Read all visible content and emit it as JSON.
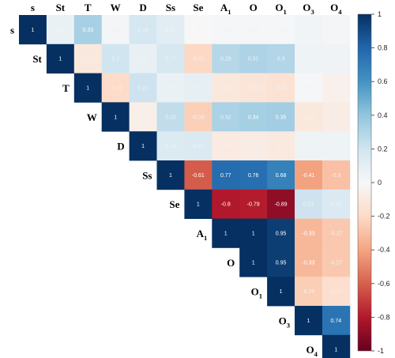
{
  "chart_data": {
    "type": "heatmap",
    "layout": "upper-triangular correlation matrix",
    "variables": [
      "s",
      "St",
      "T",
      "W",
      "D",
      "Ss",
      "Se",
      "A1",
      "O",
      "O1",
      "O3",
      "O4"
    ],
    "variable_display": [
      {
        "base": "s",
        "sub": ""
      },
      {
        "base": "St",
        "sub": ""
      },
      {
        "base": "T",
        "sub": ""
      },
      {
        "base": "W",
        "sub": ""
      },
      {
        "base": "D",
        "sub": ""
      },
      {
        "base": "Ss",
        "sub": ""
      },
      {
        "base": "Se",
        "sub": ""
      },
      {
        "base": "A",
        "sub": "1"
      },
      {
        "base": "O",
        "sub": ""
      },
      {
        "base": "O",
        "sub": "1"
      },
      {
        "base": "O",
        "sub": "3"
      },
      {
        "base": "O",
        "sub": "4"
      }
    ],
    "matrix": [
      [
        1,
        0.07,
        0.33,
        0.02,
        0.18,
        0.11,
        0,
        0.01,
        0.01,
        0.01,
        0.03,
        0.02
      ],
      [
        null,
        1,
        -0.11,
        0.2,
        0.08,
        0.17,
        -0.21,
        0.29,
        0.31,
        0.3,
        0.05,
        0.04
      ],
      [
        null,
        null,
        1,
        -0.19,
        0.21,
        0.07,
        0.09,
        -0.11,
        -0.13,
        -0.15,
        0.01,
        -0.05
      ],
      [
        null,
        null,
        null,
        1,
        -0.06,
        0.25,
        -0.24,
        0.32,
        0.34,
        0.35,
        -0.11,
        -0.08
      ],
      [
        null,
        null,
        null,
        null,
        1,
        0.14,
        0.15,
        -0.09,
        -0.08,
        -0.1,
        0.05,
        0.05
      ],
      [
        null,
        null,
        null,
        null,
        null,
        1,
        -0.61,
        0.77,
        0.76,
        0.68,
        -0.41,
        -0.3
      ],
      [
        null,
        null,
        null,
        null,
        null,
        null,
        1,
        -0.8,
        -0.79,
        -0.89,
        0.21,
        0.15
      ],
      [
        null,
        null,
        null,
        null,
        null,
        null,
        null,
        1,
        1,
        0.95,
        -0.33,
        -0.27
      ],
      [
        null,
        null,
        null,
        null,
        null,
        null,
        null,
        null,
        1,
        0.95,
        -0.33,
        -0.27
      ],
      [
        null,
        null,
        null,
        null,
        null,
        null,
        null,
        null,
        null,
        1,
        -0.25,
        -0.17
      ],
      [
        null,
        null,
        null,
        null,
        null,
        null,
        null,
        null,
        null,
        null,
        1,
        0.74
      ],
      [
        null,
        null,
        null,
        null,
        null,
        null,
        null,
        null,
        null,
        null,
        null,
        1
      ]
    ],
    "colorbar": {
      "min": -1,
      "max": 1,
      "ticks": [
        -1,
        -0.8,
        -0.6,
        -0.4,
        -0.2,
        0,
        0.2,
        0.4,
        0.6,
        0.8,
        1
      ],
      "tick_labels": [
        "-1",
        "-0.8",
        "-0.6",
        "-0.4",
        "-0.2",
        "0",
        "0.2",
        "0.4",
        "0.6",
        "0.8",
        "1"
      ],
      "colors": [
        "#67001f",
        "#b2182b",
        "#d6604d",
        "#f4a582",
        "#fddbc7",
        "#f7f7f7",
        "#d1e5f0",
        "#92c5de",
        "#4393c3",
        "#2166ac",
        "#053061"
      ],
      "position": "right"
    },
    "grid": false,
    "title": "",
    "xlabel": "",
    "ylabel": ""
  }
}
